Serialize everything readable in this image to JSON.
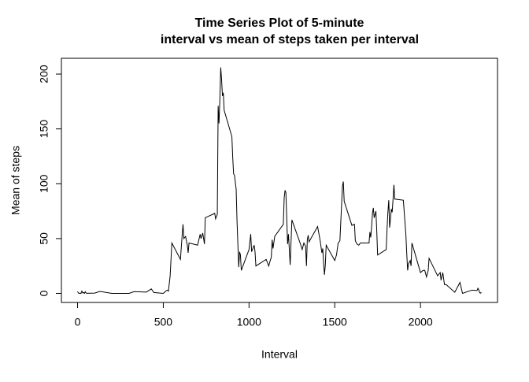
{
  "chart_data": {
    "type": "line",
    "title": [
      "Time Series Plot of 5-minute",
      "interval vs mean of steps taken per interval"
    ],
    "x_label": "Interval",
    "y_label": "Mean of steps",
    "x": [
      0,
      5,
      10,
      15,
      20,
      25,
      30,
      35,
      40,
      45,
      50,
      55,
      100,
      130,
      200,
      300,
      330,
      400,
      415,
      430,
      445,
      500,
      515,
      525,
      530,
      540,
      550,
      600,
      610,
      615,
      620,
      630,
      640,
      645,
      650,
      700,
      715,
      720,
      730,
      740,
      745,
      800,
      805,
      815,
      820,
      825,
      830,
      835,
      840,
      845,
      850,
      855,
      900,
      905,
      910,
      915,
      925,
      930,
      935,
      940,
      945,
      950,
      955,
      1000,
      1010,
      1015,
      1030,
      1035,
      1040,
      1100,
      1115,
      1120,
      1130,
      1135,
      1140,
      1150,
      1200,
      1205,
      1210,
      1215,
      1225,
      1230,
      1240,
      1250,
      1300,
      1310,
      1320,
      1330,
      1335,
      1340,
      1345,
      1350,
      1400,
      1415,
      1425,
      1430,
      1435,
      1440,
      1445,
      1450,
      1500,
      1510,
      1520,
      1530,
      1545,
      1550,
      1555,
      1600,
      1615,
      1620,
      1630,
      1640,
      1645,
      1650,
      1700,
      1705,
      1710,
      1715,
      1720,
      1725,
      1730,
      1740,
      1745,
      1750,
      1800,
      1805,
      1810,
      1815,
      1820,
      1825,
      1830,
      1835,
      1840,
      1845,
      1850,
      1900,
      1915,
      1920,
      1925,
      1930,
      1940,
      1945,
      1950,
      2000,
      2015,
      2025,
      2035,
      2045,
      2050,
      2100,
      2115,
      2120,
      2130,
      2140,
      2145,
      2150,
      2200,
      2230,
      2245,
      2300,
      2330,
      2335,
      2340,
      2345,
      2350,
      2355
    ],
    "series": [
      {
        "name": "Mean of steps",
        "color": "#000000",
        "values": [
          1.7,
          0.3,
          0.1,
          0.2,
          0,
          2.1,
          0.5,
          0.9,
          0,
          1.5,
          0.3,
          0.1,
          0.3,
          1.8,
          0,
          0,
          1.6,
          1.2,
          2.6,
          4.1,
          0.8,
          0,
          2.2,
          3,
          2.1,
          16,
          46,
          31,
          53,
          63,
          50,
          52,
          44,
          37,
          46,
          44,
          54,
          50,
          55,
          45,
          69,
          73,
          68,
          72,
          171,
          155,
          177,
          206,
          195,
          180,
          183,
          167,
          143,
          124,
          109,
          108,
          95,
          66,
          45,
          24,
          38,
          35,
          21,
          40,
          54,
          38,
          44,
          38,
          25,
          31,
          25,
          28,
          33,
          49,
          41,
          52,
          63,
          87,
          94,
          92,
          45,
          54,
          26,
          67,
          45,
          40,
          46,
          43,
          25,
          49,
          53,
          47,
          61,
          48,
          37,
          41,
          27,
          17,
          26,
          44,
          30,
          35,
          46,
          48,
          98,
          102,
          84,
          62,
          63,
          48,
          45,
          44,
          45,
          46,
          46,
          56,
          51,
          61,
          73,
          78,
          69,
          75,
          57,
          35,
          40,
          59,
          74,
          85,
          60,
          68,
          77,
          74,
          86,
          99,
          86,
          85,
          53,
          36,
          21,
          27,
          30,
          25,
          46,
          19,
          21,
          21,
          15,
          21,
          32,
          16,
          19,
          12,
          19,
          8,
          8,
          8,
          1,
          10,
          0,
          3,
          2.6,
          4.7,
          3.3,
          0.6,
          0.2,
          1.1
        ]
      }
    ],
    "xlim": [
      -94.2,
      2449.2
    ],
    "ylim": [
      -8.25,
      214.4
    ],
    "xticks": [
      0,
      500,
      1000,
      1500,
      2000
    ],
    "yticks": [
      0,
      50,
      100,
      150,
      200
    ]
  }
}
